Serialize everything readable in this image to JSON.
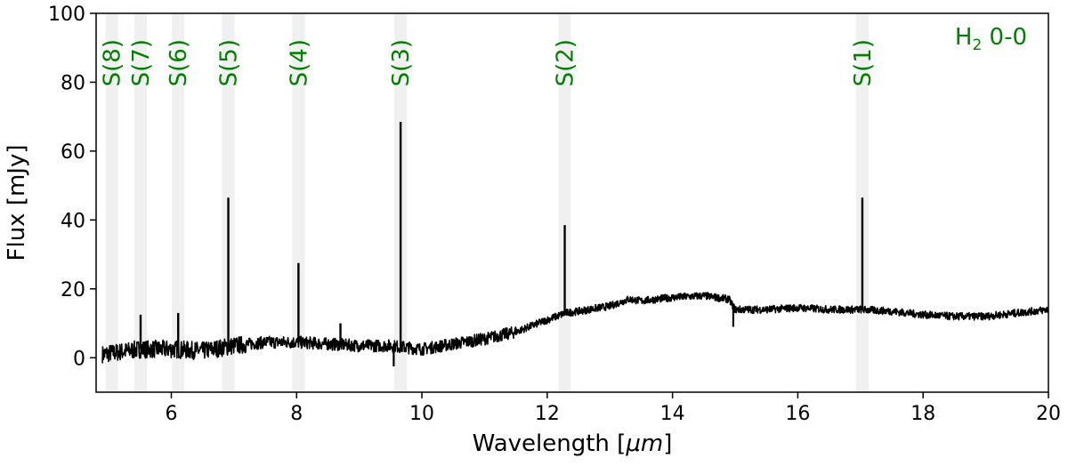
{
  "chart_data": {
    "type": "line",
    "xlabel_prefix": "Wavelength [",
    "xlabel_unit": "μm",
    "xlabel_suffix": "]",
    "ylabel": "Flux [mJy]",
    "xlim": [
      4.8,
      20
    ],
    "ylim": [
      -10,
      100
    ],
    "xticks": [
      6,
      8,
      10,
      12,
      14,
      16,
      18,
      20
    ],
    "yticks": [
      0,
      20,
      40,
      60,
      80,
      100
    ],
    "grid": false,
    "annotation_color": "#008000",
    "band_color": "#f0f0f0",
    "series_label": {
      "base": "H",
      "sub": "2",
      "rest": " 0-0"
    },
    "h2_lines": [
      {
        "label": "S(8)",
        "x": 5.05
      },
      {
        "label": "S(7)",
        "x": 5.51
      },
      {
        "label": "S(6)",
        "x": 6.11
      },
      {
        "label": "S(5)",
        "x": 6.91
      },
      {
        "label": "S(4)",
        "x": 8.03
      },
      {
        "label": "S(3)",
        "x": 9.66
      },
      {
        "label": "S(2)",
        "x": 12.28
      },
      {
        "label": "S(1)",
        "x": 17.03
      }
    ],
    "continuum": [
      [
        4.9,
        1.0
      ],
      [
        5.5,
        2.5
      ],
      [
        6.0,
        2.5
      ],
      [
        6.5,
        2.0
      ],
      [
        7.0,
        3.5
      ],
      [
        7.5,
        4.5
      ],
      [
        8.0,
        4.5
      ],
      [
        8.5,
        4.0
      ],
      [
        9.0,
        3.5
      ],
      [
        9.5,
        3.5
      ],
      [
        10.0,
        2.5
      ],
      [
        10.5,
        4.0
      ],
      [
        11.0,
        5.5
      ],
      [
        11.5,
        7.5
      ],
      [
        12.0,
        11.0
      ],
      [
        12.3,
        13.0
      ],
      [
        12.5,
        13.5
      ],
      [
        13.0,
        15.0
      ],
      [
        13.3,
        17.0
      ],
      [
        13.5,
        16.5
      ],
      [
        14.0,
        17.5
      ],
      [
        14.5,
        18.0
      ],
      [
        14.9,
        17.0
      ],
      [
        15.0,
        14.0
      ],
      [
        15.5,
        14.0
      ],
      [
        16.0,
        14.5
      ],
      [
        16.5,
        14.0
      ],
      [
        17.0,
        14.0
      ],
      [
        17.5,
        13.5
      ],
      [
        18.0,
        12.5
      ],
      [
        18.5,
        12.0
      ],
      [
        19.0,
        12.0
      ],
      [
        19.5,
        13.0
      ],
      [
        20.0,
        14.0
      ]
    ],
    "emission_peaks": [
      {
        "x": 5.51,
        "y": 12.5
      },
      {
        "x": 6.11,
        "y": 13.0
      },
      {
        "x": 6.91,
        "y": 46.5
      },
      {
        "x": 8.03,
        "y": 27.5
      },
      {
        "x": 8.7,
        "y": 10.0
      },
      {
        "x": 9.66,
        "y": 68.5
      },
      {
        "x": 12.28,
        "y": 38.5
      },
      {
        "x": 17.03,
        "y": 46.5
      }
    ],
    "absorption_dips": [
      {
        "x": 9.55,
        "y": -2.5
      },
      {
        "x": 14.97,
        "y": 9.0
      }
    ]
  }
}
